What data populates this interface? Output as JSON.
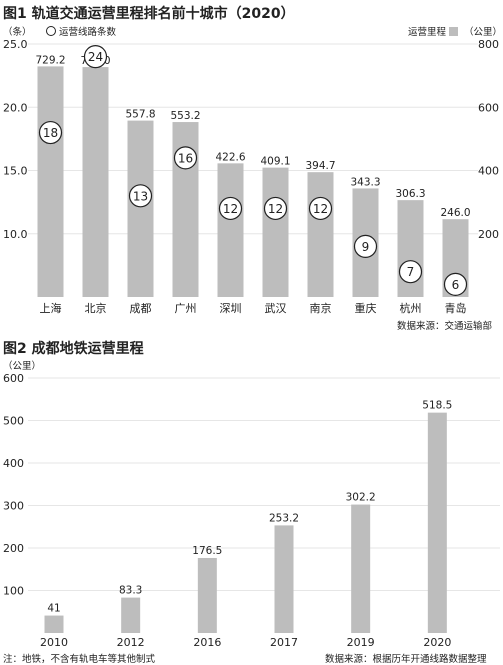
{
  "chart_data": [
    {
      "type": "bar",
      "title": "图1 轨道交通运营里程排名前十城市（2020）",
      "left_axis_unit": "（条）",
      "legend": {
        "circles": "运营线路条数",
        "bars": "运营里程"
      },
      "right_axis_unit": "（公里）",
      "categories": [
        "上海",
        "北京",
        "成都",
        "广州",
        "深圳",
        "武汉",
        "南京",
        "重庆",
        "杭州",
        "青岛"
      ],
      "series": [
        {
          "name": "运营里程",
          "values": [
            729.2,
            727.0,
            557.8,
            553.2,
            422.6,
            409.1,
            394.7,
            343.3,
            306.3,
            246.0
          ],
          "value_labels": [
            "729.2",
            "727.0",
            "557.8",
            "553.2",
            "422.6",
            "409.1",
            "394.7",
            "343.3",
            "306.3",
            "246.0"
          ],
          "axis": "right"
        },
        {
          "name": "运营线路条数",
          "values": [
            18,
            24,
            13,
            16,
            12,
            12,
            12,
            9,
            7,
            6
          ],
          "axis": "left"
        }
      ],
      "left_ticks": [
        "25.0",
        "20.0",
        "15.0",
        "10.0"
      ],
      "left_tick_values": [
        25,
        20,
        15,
        10
      ],
      "right_ticks": [
        "800",
        "600",
        "400",
        "200"
      ],
      "right_tick_values": [
        800,
        600,
        400,
        200
      ],
      "ylim_right": [
        0,
        800
      ],
      "ylim_left": [
        5,
        25
      ],
      "source": "数据来源：交通运输部",
      "grid": true
    },
    {
      "type": "bar",
      "title": "图2 成都地铁运营里程",
      "ylabel": "（公里）",
      "categories": [
        "2010",
        "2012",
        "2016",
        "2017",
        "2019",
        "2020"
      ],
      "values": [
        41,
        83.3,
        176.5,
        253.2,
        302.2,
        518.5
      ],
      "value_labels": [
        "41",
        "83.3",
        "176.5",
        "253.2",
        "302.2",
        "518.5"
      ],
      "y_ticks": [
        "600",
        "500",
        "400",
        "300",
        "200",
        "100"
      ],
      "y_tick_values": [
        600,
        500,
        400,
        300,
        200,
        100
      ],
      "ylim": [
        0,
        600
      ],
      "note": "注：地铁，不含有轨电车等其他制式",
      "source": "数据来源：根据历年开通线路数据整理",
      "grid": true
    }
  ],
  "colors": {
    "bar": "#bdbdbd",
    "grid": "#e6e6e6",
    "text": "#222222"
  }
}
